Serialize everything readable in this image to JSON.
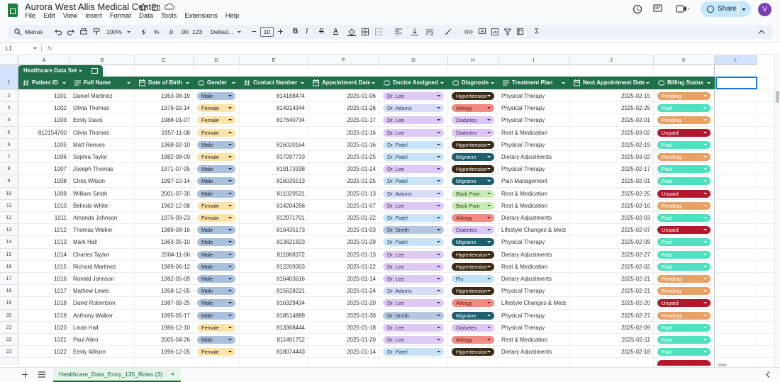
{
  "app": {
    "title": "Aurora West Allis Medical Center",
    "menus": [
      "File",
      "Edit",
      "View",
      "Insert",
      "Format",
      "Data",
      "Tools",
      "Extensions",
      "Help"
    ],
    "share": "Share",
    "avatar": "V"
  },
  "toolbar": {
    "search": "Menus",
    "zoom": "100%",
    "currency": "$",
    "percent": "%",
    "decrease_decimal": ".0",
    "increase_decimal": ".00",
    "number_format": "123",
    "font": "Defaul...",
    "font_size": "10",
    "bold": "B",
    "italic": "I",
    "strike": "S",
    "text_color": "A",
    "functions": "Σ"
  },
  "formula_bar": {
    "cell": "L1",
    "fx": "fx"
  },
  "sheet": {
    "columns": [
      "A",
      "B",
      "C",
      "D",
      "E",
      "F",
      "G",
      "H",
      "I",
      "J",
      "K",
      "L"
    ],
    "row_numbers": [
      1,
      2,
      3,
      4,
      5,
      6,
      7,
      8,
      9,
      10,
      11,
      12,
      13,
      14,
      15,
      16,
      17,
      18,
      19,
      20,
      21,
      22,
      23
    ]
  },
  "table": {
    "name": "Healthcare Data Set",
    "headers": [
      "Patient ID",
      "Full Name",
      "Date of Birth",
      "Gender",
      "Contact Number",
      "Appointment Date",
      "Doctor Assigned",
      "Diagnosis",
      "Treatment Plan",
      "Next Appointment Date",
      "Billing Status"
    ],
    "rows": [
      [
        "1001",
        "Daniel Martinez",
        "1963-08-19",
        "Male",
        "814188474",
        "2025-01-06",
        "Dr. Lee",
        "Hypertension",
        "Physical Therapy",
        "2025-02-15",
        "Pending"
      ],
      [
        "1002",
        "Olivia Thomas",
        "1976-02-14",
        "Female",
        "814914344",
        "2025-01-26",
        "Dr. Adams",
        "Allergy",
        "Physical Therapy",
        "2025-02-25",
        "Paid"
      ],
      [
        "1003",
        "Emily Davis",
        "1988-01-07",
        "Female",
        "817640734",
        "2025-01-17",
        "Dr. Lee",
        "Diabetes",
        "Physical Therapy",
        "2025-02-01",
        "Pending"
      ],
      [
        "812154700",
        "Olivia Thomas",
        "1957-11-08",
        "Female",
        null,
        "2025-01-16",
        "Dr. Lee",
        "Diabetes",
        "Rest & Medication",
        "2025-03-02",
        "Unpaid"
      ],
      [
        "1005",
        "Matt Reeves",
        "1968-02-10",
        "Male",
        "816020164",
        "2025-01-16",
        "Dr. Patel",
        "Hypertension",
        "Physical Therapy",
        "2025-02-19",
        "Paid"
      ],
      [
        "1006",
        "Sophia Taylor",
        "1982-08-09",
        "Female",
        "817287733",
        "2025-01-25",
        "Dr. Patel",
        "Migraine",
        "Dietary Adjustments",
        "2025-03-02",
        "Pending"
      ],
      [
        "1007",
        "Joseph Thomas",
        "1971-07-05",
        "Male",
        "819173338",
        "2025-01-24",
        "Dr. Lee",
        "Hypertension",
        "Physical Therapy",
        "2025-02-17",
        "Paid"
      ],
      [
        "1008",
        "Chris Wilson",
        "1997-10-14",
        "Male",
        "816035513",
        "2025-01-25",
        "Dr. Patel",
        "Migraine",
        "Pain Management",
        "2025-02-01",
        "Paid"
      ],
      [
        "1009",
        "William Smith",
        "2001-07-30",
        "Male",
        "811029531",
        "2025-01-13",
        "Dr. Adams",
        "Back Pain",
        "Rest & Medication",
        "2025-02-25",
        "Unpaid"
      ],
      [
        "1010",
        "Belinda White",
        "1962-12-08",
        "Female",
        "814204266",
        "2025-01-07",
        "Dr. Lee",
        "Back Pain",
        "Rest & Medication",
        "2025-02-16",
        "Pending"
      ],
      [
        "1011",
        "Amanda Johnson",
        "1976-09-23",
        "Female",
        "812971701",
        "2025-01-22",
        "Dr. Patel",
        "Allergy",
        "Dietary Adjustments",
        "2025-02-03",
        "Paid"
      ],
      [
        "1012",
        "Thomas Walker",
        "1989-08-16",
        "Male",
        "816435173",
        "2025-01-03",
        "Dr. Smith",
        "Diabetes",
        "Lifestyle Changes & Meds",
        "2025-02-07",
        "Unpaid"
      ],
      [
        "1013",
        "Mark Hall",
        "1963-05-10",
        "Male",
        "813621823",
        "2025-01-29",
        "Dr. Patel",
        "Migraine",
        "Physical Therapy",
        "2025-02-09",
        "Paid"
      ],
      [
        "1014",
        "Charles Taylor",
        "2004-11-06",
        "Male",
        "811868372",
        "2025-01-13",
        "Dr. Lee",
        "Hypertension",
        "Dietary Adjustments",
        "2025-02-27",
        "Paid"
      ],
      [
        "1015",
        "Richard Martinez",
        "1989-06-12",
        "Male",
        "812209303",
        "2025-01-22",
        "Dr. Lee",
        "Hypertension",
        "Rest & Medication",
        "2025-02-02",
        "Paid"
      ],
      [
        "1016",
        "Ronald Johnson",
        "1982-05-09",
        "Male",
        "816403616",
        "2025-01-14",
        "Dr. Lee",
        "Flu",
        "Dietary Adjustments",
        "2025-02-21",
        "Pending"
      ],
      [
        "1017",
        "Mathew Lewis",
        "1958-12-05",
        "Male",
        "815628221",
        "2025-01-24",
        "Dr. Adams",
        "Hypertension",
        "Physical Therapy",
        "2025-02-21",
        "Pending"
      ],
      [
        "1018",
        "David Robertson",
        "1987-09-25",
        "Male",
        "816329434",
        "2025-01-20",
        "Dr. Lee",
        "Allergy",
        "Lifestyle Changes & Meds",
        "2025-02-20",
        "Unpaid"
      ],
      [
        "1019",
        "Anthony Walker",
        "1995-05-17",
        "Male",
        "818514889",
        "2025-01-30",
        "Dr. Smith",
        "Migraine",
        "Physical Therapy",
        "2025-02-27",
        "Pending"
      ],
      [
        "1020",
        "Linda Hall",
        "1986-12-10",
        "Female",
        "813368444",
        "2025-01-18",
        "Dr. Lee",
        "Diabetes",
        "Physical Therapy",
        "2025-02-09",
        "Paid"
      ],
      [
        "1021",
        "Paul Allen",
        "2005-04-26",
        "Male",
        "811491752",
        "2025-01-20",
        "Dr. Lee",
        "Allergy",
        "Rest & Medication",
        "2025-02-11",
        "Paid"
      ],
      [
        "1022",
        "Emily Wilson",
        "1996-12-05",
        "Female",
        "818074443",
        "2025-01-14",
        "Dr. Patel",
        "Hypertension",
        "Dietary Adjustments",
        "2025-02-18",
        "Paid"
      ]
    ],
    "chip_colors": {
      "Gender": {
        "Male": [
          "#a9c0dc",
          "#1f1f1f"
        ],
        "Female": [
          "#fde3a7",
          "#1f1f1f"
        ]
      },
      "Doctor Assigned": {
        "Dr. Lee": [
          "#dccaf5",
          "#3c2a5c"
        ],
        "Dr. Adams": [
          "#d9dcf7",
          "#2d3160"
        ],
        "Dr. Patel": [
          "#c8e3f8",
          "#1c3d57"
        ],
        "Dr. Smith": [
          "#b5c7df",
          "#1f2f45"
        ]
      },
      "Diagnosis": {
        "Hypertension": [
          "#3b2a14",
          "#ffffff"
        ],
        "Allergy": [
          "#f28b82",
          "#5c1a14"
        ],
        "Diabetes": [
          "#dcc7f4",
          "#4a2d6e"
        ],
        "Migraine": [
          "#1d5f6f",
          "#ffffff"
        ],
        "Back Pain": [
          "#c9ebb5",
          "#2b4d1c"
        ],
        "Flu": [
          "#c2e2f7",
          "#1c3d57"
        ]
      },
      "Billing Status": {
        "Pending": [
          "#e8a164",
          "#ffffff"
        ],
        "Paid": [
          "#4fe0c0",
          "#ffffff"
        ],
        "Unpaid": [
          "#b3172c",
          "#ffffff"
        ]
      }
    }
  },
  "tabs": {
    "active": "Healthcare_Data_Entry_135_Rows (3)"
  }
}
